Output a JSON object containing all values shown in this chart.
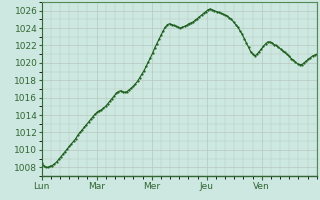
{
  "background_color": "#cce8e0",
  "line_color": "#1a5c1a",
  "marker": ".",
  "markersize": 1.2,
  "linewidth": 0.8,
  "ylim": [
    1007,
    1027
  ],
  "yticks": [
    1008,
    1010,
    1012,
    1014,
    1016,
    1018,
    1020,
    1022,
    1024,
    1026
  ],
  "xlabel_days": [
    "Lun",
    "Mar",
    "Mer",
    "Jeu",
    "Ven"
  ],
  "grid_color": "#b8c8c0",
  "tick_fontsize": 6.5,
  "tick_color": "#336633",
  "pressure_values": [
    1008.5,
    1008.2,
    1008.0,
    1008.0,
    1008.1,
    1008.2,
    1008.4,
    1008.6,
    1008.9,
    1009.2,
    1009.5,
    1009.8,
    1010.1,
    1010.4,
    1010.7,
    1011.0,
    1011.3,
    1011.7,
    1012.0,
    1012.3,
    1012.6,
    1012.9,
    1013.2,
    1013.5,
    1013.8,
    1014.1,
    1014.3,
    1014.5,
    1014.6,
    1014.8,
    1015.0,
    1015.3,
    1015.6,
    1015.9,
    1016.2,
    1016.5,
    1016.7,
    1016.8,
    1016.7,
    1016.6,
    1016.7,
    1016.9,
    1017.1,
    1017.3,
    1017.6,
    1017.9,
    1018.3,
    1018.7,
    1019.1,
    1019.6,
    1020.1,
    1020.6,
    1021.1,
    1021.7,
    1022.2,
    1022.7,
    1023.2,
    1023.7,
    1024.1,
    1024.4,
    1024.5,
    1024.4,
    1024.3,
    1024.2,
    1024.1,
    1024.0,
    1024.1,
    1024.2,
    1024.3,
    1024.5,
    1024.6,
    1024.7,
    1024.9,
    1025.1,
    1025.3,
    1025.5,
    1025.7,
    1025.9,
    1026.1,
    1026.2,
    1026.1,
    1026.0,
    1025.9,
    1025.8,
    1025.7,
    1025.6,
    1025.5,
    1025.4,
    1025.2,
    1025.0,
    1024.7,
    1024.4,
    1024.1,
    1023.7,
    1023.3,
    1022.8,
    1022.3,
    1021.8,
    1021.3,
    1021.0,
    1020.8,
    1021.0,
    1021.3,
    1021.6,
    1021.9,
    1022.2,
    1022.4,
    1022.4,
    1022.3,
    1022.1,
    1022.0,
    1021.8,
    1021.6,
    1021.4,
    1021.2,
    1021.0,
    1020.8,
    1020.5,
    1020.3,
    1020.1,
    1019.9,
    1019.8,
    1019.8,
    1020.0,
    1020.2,
    1020.4,
    1020.6,
    1020.8,
    1020.9,
    1021.0
  ]
}
